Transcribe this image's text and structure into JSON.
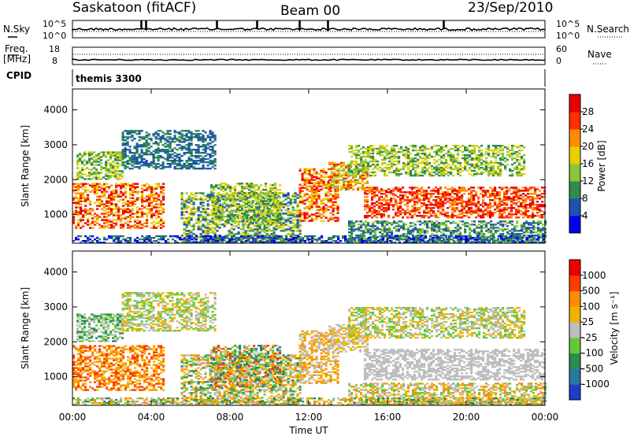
{
  "header": {
    "station": "Saskatoon (fitACF)",
    "beam": "Beam 00",
    "date": "23/Sep/2010"
  },
  "top_panels": {
    "nsky_label": "N.Sky",
    "nsky_ticks": [
      "10^5",
      "10^0"
    ],
    "nsearch_label": "N.Search",
    "nsearch_ticks": [
      "10^5",
      "10^0"
    ],
    "freq_label_1": "Freq.",
    "freq_label_2": "[MHz]",
    "freq_ticks": [
      "18",
      "8"
    ],
    "nave_label": "Nave",
    "nave_ticks": [
      "60",
      "0"
    ],
    "cpid_label": "CPID",
    "cpid_value": "themis 3300"
  },
  "chart_data": [
    {
      "type": "heatmap",
      "name": "power",
      "ylabel": "Slant Range [km]",
      "yticks": [
        "4000",
        "3000",
        "2000",
        "1000"
      ],
      "ylim": [
        180,
        4600
      ],
      "colorbar_label": "Power [dB]",
      "colorbar_ticks": [
        "28",
        "24",
        "20",
        "16",
        "12",
        "8",
        "4"
      ],
      "colorbar_colors": [
        "#0000ee",
        "#2050b0",
        "#2e8c50",
        "#8cc43c",
        "#e8d000",
        "#ff8c00",
        "#ff3000",
        "#e60000"
      ],
      "xlim": [
        0,
        24
      ]
    },
    {
      "type": "heatmap",
      "name": "velocity",
      "ylabel": "Slant Range [km]",
      "yticks": [
        "4000",
        "3000",
        "2000",
        "1000"
      ],
      "ylim": [
        180,
        4600
      ],
      "colorbar_label": "Velocity [m s⁻¹]",
      "colorbar_ticks": [
        "1000",
        "500",
        "100",
        "25",
        "-25",
        "-100",
        "-500",
        "-1000"
      ],
      "colorbar_colors": [
        "#1e3cc8",
        "#2878a0",
        "#2e8c50",
        "#64c83c",
        "#bebebe",
        "#f0b400",
        "#ff8c00",
        "#ff3c00",
        "#ee0000"
      ],
      "xlim": [
        0,
        24
      ]
    }
  ],
  "xaxis": {
    "ticks": [
      "00:00",
      "04:00",
      "08:00",
      "12:00",
      "16:00",
      "20:00",
      "00:00"
    ],
    "label": "Time UT"
  }
}
